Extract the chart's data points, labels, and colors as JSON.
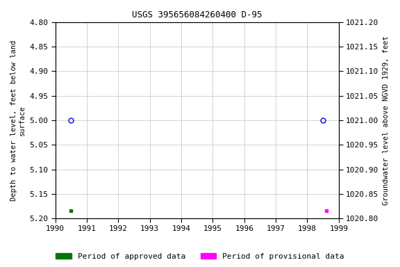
{
  "title": "USGS 395656084260400 D-95",
  "ylabel_left": "Depth to water level, feet below land\nsurface",
  "ylabel_right": "Groundwater level above NGVD 1929, feet",
  "xlim": [
    1990,
    1999
  ],
  "ylim_left_top": 4.8,
  "ylim_left_bottom": 5.2,
  "ylim_right_top": 1021.2,
  "ylim_right_bottom": 1020.8,
  "xticks": [
    1990,
    1991,
    1992,
    1993,
    1994,
    1995,
    1996,
    1997,
    1998,
    1999
  ],
  "yticks_left": [
    4.8,
    4.85,
    4.9,
    4.95,
    5.0,
    5.05,
    5.1,
    5.15,
    5.2
  ],
  "yticks_right": [
    1021.2,
    1021.15,
    1021.1,
    1021.05,
    1021.0,
    1020.95,
    1020.9,
    1020.85,
    1020.8
  ],
  "circle_points_x": [
    1990.5,
    1998.5
  ],
  "circle_points_y": [
    5.0,
    5.0
  ],
  "square_green_x": 1990.5,
  "square_green_y": 5.185,
  "square_magenta_x": 1998.6,
  "square_magenta_y": 5.185,
  "circle_color": "#0000cc",
  "green_color": "#007700",
  "magenta_color": "#ff00ff",
  "background_color": "#ffffff",
  "grid_color": "#c0c0c0",
  "title_fontsize": 9,
  "label_fontsize": 7.5,
  "tick_fontsize": 8,
  "legend_fontsize": 8,
  "legend_label_approved": "Period of approved data",
  "legend_label_provisional": "Period of provisional data"
}
